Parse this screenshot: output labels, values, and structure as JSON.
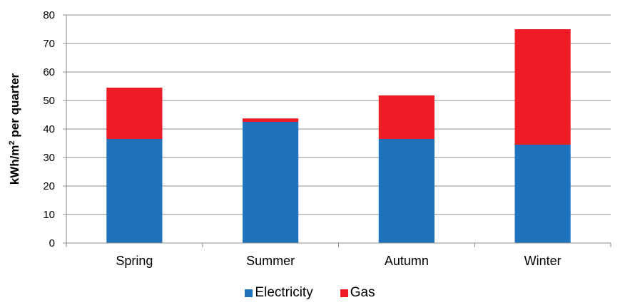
{
  "chart_data": {
    "type": "bar",
    "stacked": true,
    "categories": [
      "Spring",
      "Summer",
      "Autumn",
      "Winter"
    ],
    "series": [
      {
        "name": "Electricity",
        "color": "#1f73bd",
        "values": [
          36.5,
          42.5,
          36.5,
          34.5
        ]
      },
      {
        "name": "Gas",
        "color": "#ee1c25",
        "values": [
          18.0,
          1.2,
          15.3,
          40.5
        ]
      }
    ],
    "ylabel_main": "kWh/m",
    "ylabel_sup": "2",
    "ylabel_rest": " per quarter",
    "ylim": [
      0,
      80
    ],
    "yticks": [
      "0",
      "10",
      "20",
      "30",
      "40",
      "50",
      "60",
      "70",
      "80"
    ],
    "grid": true,
    "legend_position": "bottom"
  }
}
